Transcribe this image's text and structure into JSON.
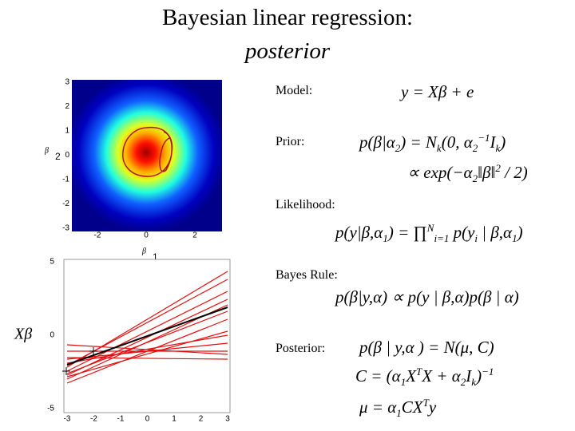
{
  "title": {
    "line1": "Bayesian linear regression:",
    "line2": "posterior"
  },
  "top_plot": {
    "yticks": [
      "3",
      "2",
      "1",
      "0",
      "-1",
      "-2",
      "-3"
    ],
    "xticks": [
      "-2",
      "0",
      "2"
    ],
    "ylabel": "β",
    "ylabel_sub": "2",
    "xlabel": "β",
    "xlabel_sub": "1"
  },
  "bottom_plot": {
    "yticks": [
      "5",
      "0",
      "-5"
    ],
    "xticks": [
      "-3",
      "-2",
      "-1",
      "0",
      "1",
      "2",
      "3"
    ],
    "ylabel": "Xβ"
  },
  "labels": [
    "Model:",
    "Prior:",
    "Likelihood:",
    "Bayes Rule:",
    "Posterior:"
  ],
  "equations": [
    {
      "parts": [
        "y = Xβ + e"
      ]
    },
    {
      "parts": [
        "p(β|α",
        {
          "sub": "2"
        },
        ") = N",
        {
          "sub": "k"
        },
        "(0, α",
        {
          "sub": "2"
        },
        {
          "sup": "−1"
        },
        "I",
        {
          "sub": "k"
        },
        ")"
      ]
    },
    {
      "parts": [
        "∝ exp(−α",
        {
          "sub": "2"
        },
        "‖β‖",
        {
          "sup": "2"
        },
        " / 2)"
      ]
    },
    {
      "parts": [
        "p(y|β,α",
        {
          "sub": "1"
        },
        ") = ∏",
        {
          "sup": "N"
        },
        {
          "sub": "i=1"
        },
        " p(y",
        {
          "sub": "i"
        },
        " | β,α",
        {
          "sub": "1"
        },
        ")"
      ]
    },
    {
      "parts": [
        "p(β|y,α) ∝ p(y | β,α)p(β | α)"
      ]
    },
    {
      "parts": [
        "p(β | y,α ) = N(μ, C)"
      ]
    },
    {
      "parts": [
        "C = (α",
        {
          "sub": "1"
        },
        "X",
        {
          "sup": "T"
        },
        "X + α",
        {
          "sub": "2"
        },
        "I",
        {
          "sub": "k"
        },
        ")",
        {
          "sup": "−1"
        }
      ]
    },
    {
      "parts": [
        "μ = α",
        {
          "sub": "1"
        },
        "CX",
        {
          "sup": "T"
        },
        "y"
      ]
    }
  ]
}
